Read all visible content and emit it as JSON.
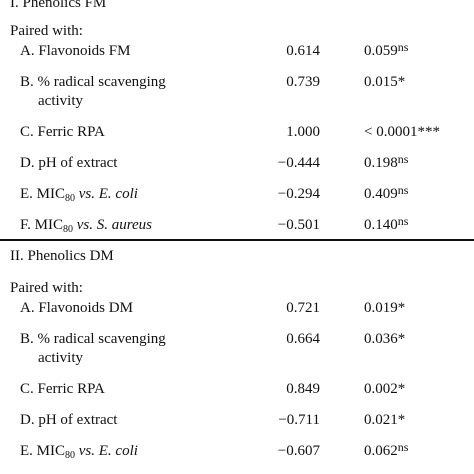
{
  "section1": {
    "title": "I. Phenolics FM",
    "paired_label": "Paired with:",
    "rows": [
      {
        "label_pre": "A. Flavonoids FM",
        "r": "0.614",
        "p": "0.059",
        "p_sup": "ns"
      },
      {
        "label_pre": "B. % radical scavenging",
        "label_line2": "activity",
        "r": "0.739",
        "p": "0.015*",
        "p_sup": ""
      },
      {
        "label_pre": "C. Ferric RPA",
        "r": "1.000",
        "p": "< 0.0001***",
        "p_sup": ""
      },
      {
        "label_pre": "D. pH of extract",
        "r": "−0.444",
        "p": "0.198",
        "p_sup": "ns"
      },
      {
        "label_pre": "E. MIC",
        "label_sub": "80",
        "label_post": " vs. E. coli",
        "r": "−0.294",
        "p": "0.409",
        "p_sup": "ns"
      },
      {
        "label_pre": "F. MIC",
        "label_sub": "80",
        "label_post": " vs. S. aureus",
        "r": "−0.501",
        "p": "0.140",
        "p_sup": "ns"
      }
    ]
  },
  "section2": {
    "title": "II. Phenolics DM",
    "paired_label": "Paired with:",
    "rows": [
      {
        "label_pre": "A. Flavonoids DM",
        "r": "0.721",
        "p": "0.019*",
        "p_sup": ""
      },
      {
        "label_pre": "B. % radical scavenging",
        "label_line2": "activity",
        "r": "0.664",
        "p": "0.036*",
        "p_sup": ""
      },
      {
        "label_pre": "C. Ferric RPA",
        "r": "0.849",
        "p": "0.002*",
        "p_sup": ""
      },
      {
        "label_pre": "D. pH of extract",
        "r": "−0.711",
        "p": "0.021*",
        "p_sup": ""
      },
      {
        "label_pre": "E. MIC",
        "label_sub": "80",
        "label_post": " vs. E. coli",
        "r": "−0.607",
        "p": "0.062",
        "p_sup": "ns"
      }
    ]
  }
}
